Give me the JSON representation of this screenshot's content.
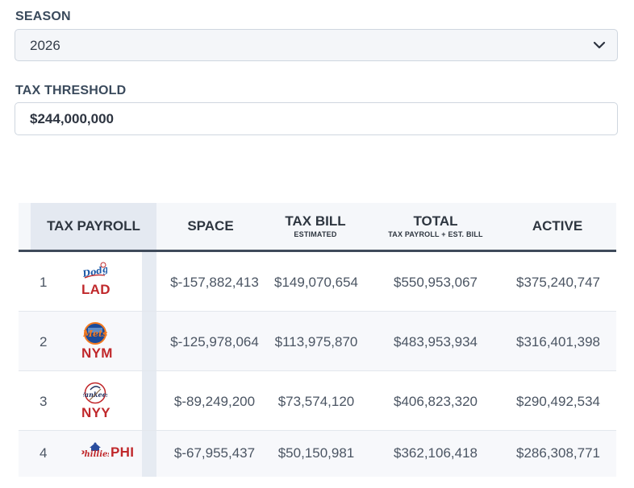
{
  "filters": {
    "season_label": "SEASON",
    "season_value": "2026",
    "threshold_label": "TAX THRESHOLD",
    "threshold_value": "$244,000,000"
  },
  "table": {
    "headers": {
      "tax_payroll": "TAX PAYROLL",
      "space": "SPACE",
      "tax_bill": "TAX BILL",
      "tax_bill_sub": "ESTIMATED",
      "total": "TOTAL",
      "total_sub": "TAX PAYROLL + EST. BILL",
      "active": "ACTIVE"
    },
    "rows": [
      {
        "rank": "1",
        "team": "LAD",
        "space": "$-157,882,413",
        "tax_bill": "$149,070,654",
        "total": "$550,953,067",
        "active": "$375,240,747"
      },
      {
        "rank": "2",
        "team": "NYM",
        "space": "$-125,978,064",
        "tax_bill": "$113,975,870",
        "total": "$483,953,934",
        "active": "$316,401,398"
      },
      {
        "rank": "3",
        "team": "NYY",
        "space": "$-89,249,200",
        "tax_bill": "$73,574,120",
        "total": "$406,823,320",
        "active": "$290,492,534"
      },
      {
        "rank": "4",
        "team": "PHI",
        "space": "$-67,955,437",
        "tax_bill": "$50,150,981",
        "total": "$362,106,418",
        "active": "$286,308,771"
      }
    ]
  },
  "colors": {
    "team_red": "#c0282b",
    "header_rule": "#3f4a5a",
    "mets_blue": "#1a4a9a",
    "mets_orange": "#f47a1f",
    "dodgers_blue": "#1c5aa8",
    "yankees_navy": "#1c2c5b"
  },
  "icons": {
    "season_select": "chevron-down-icon",
    "LAD": "dodgers-logo-icon",
    "NYM": "mets-logo-icon",
    "NYY": "yankees-logo-icon",
    "PHI": "phillies-logo-icon"
  }
}
